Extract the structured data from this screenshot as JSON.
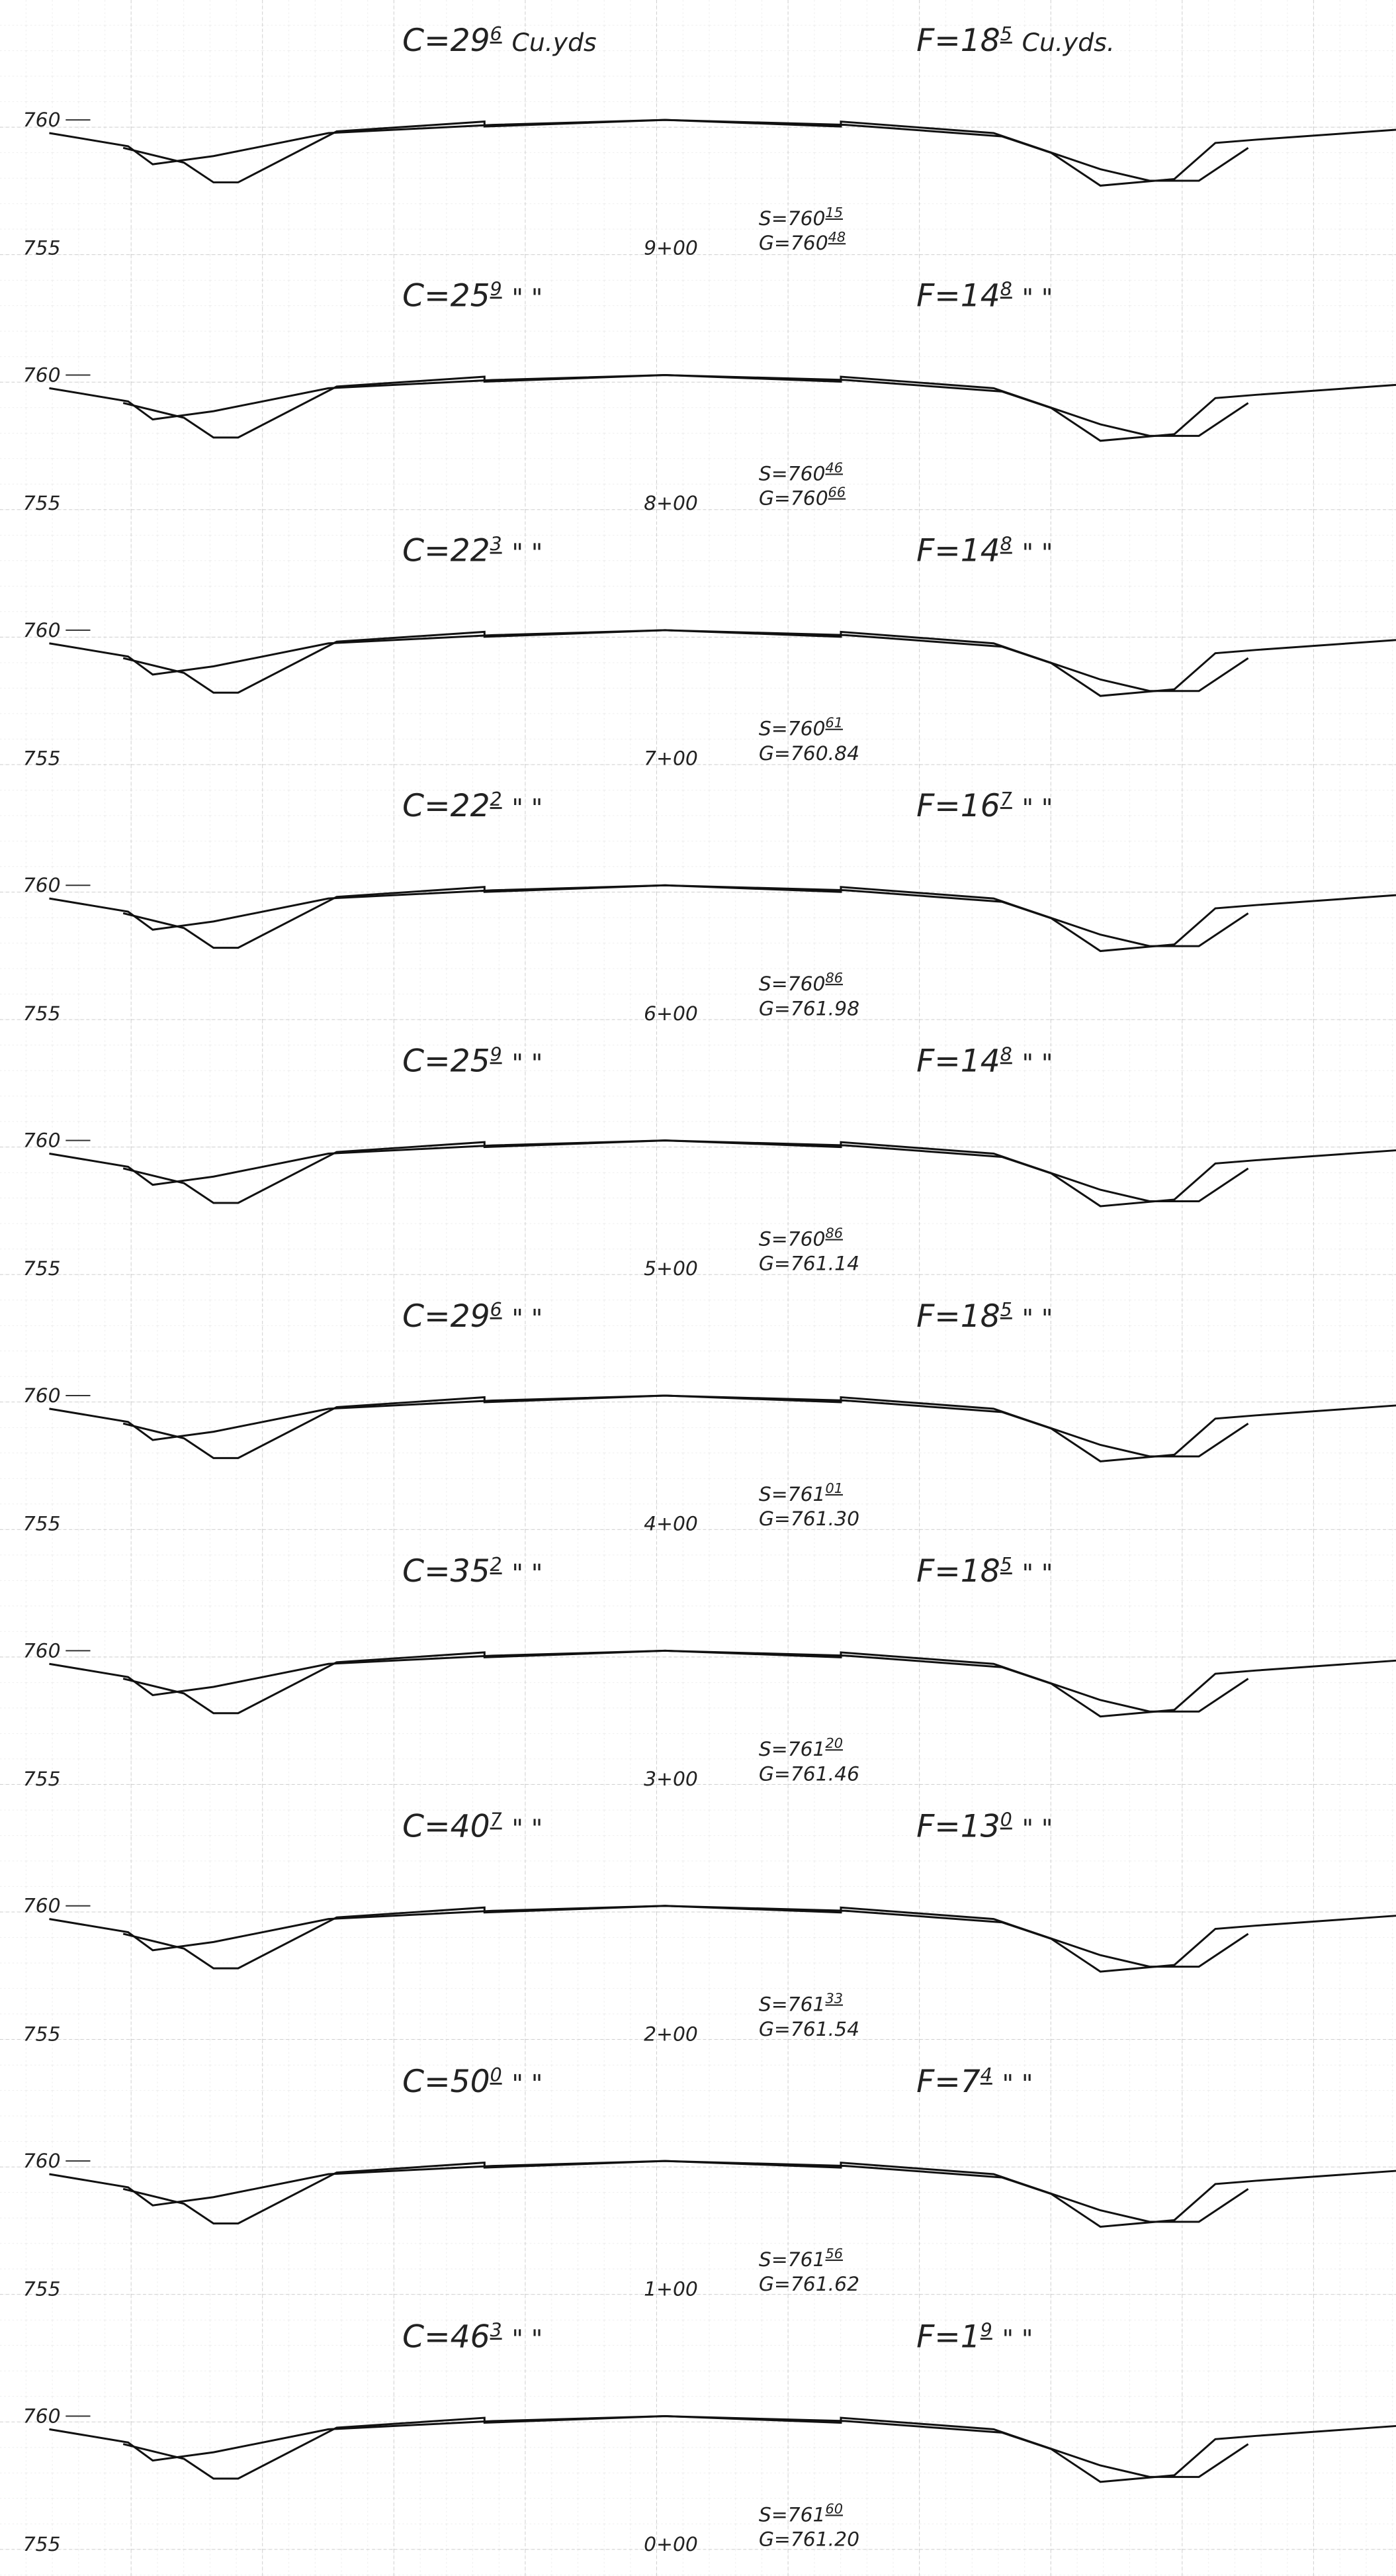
{
  "sections": [
    {
      "station": "9+00",
      "cut": {
        "label": "C=",
        "whole": "29",
        "frac": "6",
        "tail": "Cu.yds"
      },
      "fill": {
        "label": "F=",
        "whole": "18",
        "frac": "5",
        "tail": "Cu.yds."
      },
      "elev_high": "760",
      "elev_low": "755",
      "s": {
        "label": "S=760",
        "frac": "15"
      },
      "g": {
        "label": "G=760",
        "frac": "48"
      }
    },
    {
      "station": "8+00",
      "cut": {
        "label": "C=",
        "whole": "25",
        "frac": "9",
        "tail": "\" \""
      },
      "fill": {
        "label": "F=",
        "whole": "14",
        "frac": "8",
        "tail": "\" \""
      },
      "elev_high": "760",
      "elev_low": "755",
      "s": {
        "label": "S=760",
        "frac": "46"
      },
      "g": {
        "label": "G=760",
        "frac": "66"
      }
    },
    {
      "station": "7+00",
      "cut": {
        "label": "C=",
        "whole": "22",
        "frac": "3",
        "tail": "\" \""
      },
      "fill": {
        "label": "F=",
        "whole": "14",
        "frac": "8",
        "tail": "\" \""
      },
      "elev_high": "760",
      "elev_low": "755",
      "s": {
        "label": "S=760",
        "frac": "61"
      },
      "g": {
        "label": "G=760.84"
      }
    },
    {
      "station": "6+00",
      "cut": {
        "label": "C=",
        "whole": "22",
        "frac": "2",
        "tail": "\" \""
      },
      "fill": {
        "label": "F=",
        "whole": "16",
        "frac": "7",
        "tail": "\" \""
      },
      "elev_high": "760",
      "elev_low": "755",
      "s": {
        "label": "S=760",
        "frac": "86"
      },
      "g": {
        "label": "G=761.98"
      }
    },
    {
      "station": "5+00",
      "cut": {
        "label": "C=",
        "whole": "25",
        "frac": "9",
        "tail": "\" \""
      },
      "fill": {
        "label": "F=",
        "whole": "14",
        "frac": "8",
        "tail": "\" \""
      },
      "elev_high": "760",
      "elev_low": "755",
      "s": {
        "label": "S=760",
        "frac": "86"
      },
      "g": {
        "label": "G=761.14"
      }
    },
    {
      "station": "4+00",
      "cut": {
        "label": "C=",
        "whole": "29",
        "frac": "6",
        "tail": "\" \""
      },
      "fill": {
        "label": "F=",
        "whole": "18",
        "frac": "5",
        "tail": "\" \""
      },
      "elev_high": "760",
      "elev_low": "755",
      "s": {
        "label": "S=761",
        "frac": "01"
      },
      "g": {
        "label": "G=761.30"
      }
    },
    {
      "station": "3+00",
      "cut": {
        "label": "C=",
        "whole": "35",
        "frac": "2",
        "tail": "\" \""
      },
      "fill": {
        "label": "F=",
        "whole": "18",
        "frac": "5",
        "tail": "\" \""
      },
      "elev_high": "760",
      "elev_low": "755",
      "s": {
        "label": "S=761",
        "frac": "20"
      },
      "g": {
        "label": "G=761.46"
      }
    },
    {
      "station": "2+00",
      "cut": {
        "label": "C=",
        "whole": "40",
        "frac": "7",
        "tail": "\" \""
      },
      "fill": {
        "label": "F=",
        "whole": "13",
        "frac": "0",
        "tail": "\" \""
      },
      "elev_high": "760",
      "elev_low": "755",
      "s": {
        "label": "S=761",
        "frac": "33"
      },
      "g": {
        "label": "G=761.54"
      }
    },
    {
      "station": "1+00",
      "cut": {
        "label": "C=",
        "whole": "50",
        "frac": "0",
        "tail": "\" \""
      },
      "fill": {
        "label": "F=",
        "whole": "7",
        "frac": "4",
        "tail": "\" \""
      },
      "elev_high": "760",
      "elev_low": "755",
      "s": {
        "label": "S=761",
        "frac": "56"
      },
      "g": {
        "label": "G=761.62"
      }
    },
    {
      "station": "0+00",
      "cut": {
        "label": "C=",
        "whole": "46",
        "frac": "3",
        "tail": "\" \""
      },
      "fill": {
        "label": "F=",
        "whole": "1",
        "frac": "9",
        "tail": "\" \""
      },
      "elev_high": "760",
      "elev_low": "755",
      "s": {
        "label": "S=761",
        "frac": "60"
      },
      "g": {
        "label": "G=761.20"
      }
    }
  ]
}
